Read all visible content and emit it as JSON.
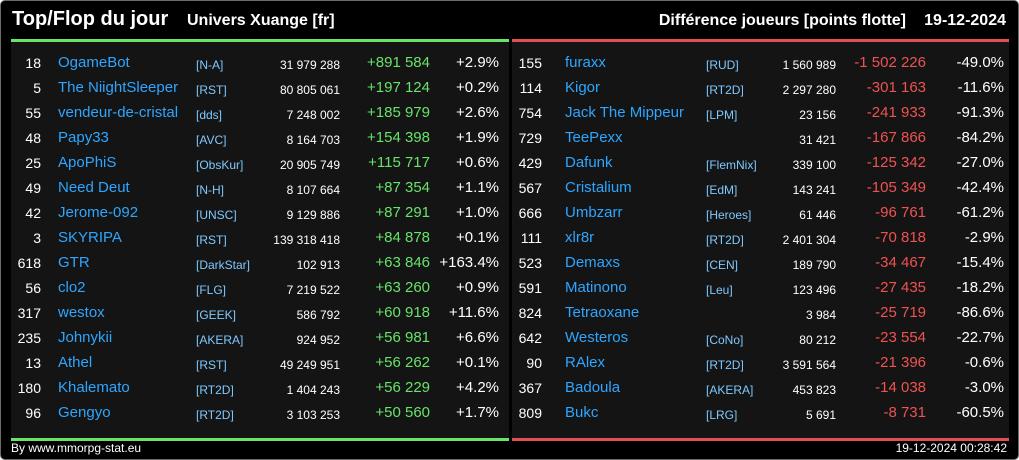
{
  "header": {
    "title": "Top/Flop du jour",
    "univers": "Univers Xuange [fr]",
    "metric": "Différence joueurs [points flotte]",
    "date": "19-12-2024"
  },
  "colors": {
    "top": "#6be36b",
    "flop": "#e0504f",
    "name": "#2ea6ff"
  },
  "top": [
    {
      "rank": "18",
      "name": "OgameBot",
      "alliance": "[N-A]",
      "points": "31 979 288",
      "diff": "+891 584",
      "pct": "+2.9%"
    },
    {
      "rank": "5",
      "name": "The NiightSleeper",
      "alliance": "[RST]",
      "points": "80 805 061",
      "diff": "+197 124",
      "pct": "+0.2%"
    },
    {
      "rank": "55",
      "name": "vendeur-de-cristal",
      "alliance": "[dds]",
      "points": "7 248 002",
      "diff": "+185 979",
      "pct": "+2.6%"
    },
    {
      "rank": "48",
      "name": "Papy33",
      "alliance": "[AVC]",
      "points": "8 164 703",
      "diff": "+154 398",
      "pct": "+1.9%"
    },
    {
      "rank": "25",
      "name": "ApoPhiS",
      "alliance": "[ObsKur]",
      "points": "20 905 749",
      "diff": "+115 717",
      "pct": "+0.6%"
    },
    {
      "rank": "49",
      "name": "Need Deut",
      "alliance": "[N-H]",
      "points": "8 107 664",
      "diff": "+87 354",
      "pct": "+1.1%"
    },
    {
      "rank": "42",
      "name": "Jerome-092",
      "alliance": "[UNSC]",
      "points": "9 129 886",
      "diff": "+87 291",
      "pct": "+1.0%"
    },
    {
      "rank": "3",
      "name": "SKYRIPA",
      "alliance": "[RST]",
      "points": "139 318 418",
      "diff": "+84 878",
      "pct": "+0.1%"
    },
    {
      "rank": "618",
      "name": "GTR",
      "alliance": "[DarkStar]",
      "points": "102 913",
      "diff": "+63 846",
      "pct": "+163.4%"
    },
    {
      "rank": "56",
      "name": "clo2",
      "alliance": "[FLG]",
      "points": "7 219 522",
      "diff": "+63 260",
      "pct": "+0.9%"
    },
    {
      "rank": "317",
      "name": "westox",
      "alliance": "[GEEK]",
      "points": "586 792",
      "diff": "+60 918",
      "pct": "+11.6%"
    },
    {
      "rank": "235",
      "name": "Johnykii",
      "alliance": "[AKERA]",
      "points": "924 952",
      "diff": "+56 981",
      "pct": "+6.6%"
    },
    {
      "rank": "13",
      "name": "Athel",
      "alliance": "[RST]",
      "points": "49 249 951",
      "diff": "+56 262",
      "pct": "+0.1%"
    },
    {
      "rank": "180",
      "name": "Khalemato",
      "alliance": "[RT2D]",
      "points": "1 404 243",
      "diff": "+56 229",
      "pct": "+4.2%"
    },
    {
      "rank": "96",
      "name": "Gengyo",
      "alliance": "[RT2D]",
      "points": "3 103 253",
      "diff": "+50 560",
      "pct": "+1.7%"
    }
  ],
  "flop": [
    {
      "rank": "155",
      "name": "furaxx",
      "alliance": "[RUD]",
      "points": "1 560 989",
      "diff": "-1 502 226",
      "pct": "-49.0%"
    },
    {
      "rank": "114",
      "name": "Kigor",
      "alliance": "[RT2D]",
      "points": "2 297 280",
      "diff": "-301 163",
      "pct": "-11.6%"
    },
    {
      "rank": "754",
      "name": "Jack The Mippeur",
      "alliance": "[LPM]",
      "points": "23 156",
      "diff": "-241 933",
      "pct": "-91.3%"
    },
    {
      "rank": "729",
      "name": "TeePexx",
      "alliance": "",
      "points": "31 421",
      "diff": "-167 866",
      "pct": "-84.2%"
    },
    {
      "rank": "429",
      "name": "Dafunk",
      "alliance": "[FlemNix]",
      "points": "339 100",
      "diff": "-125 342",
      "pct": "-27.0%"
    },
    {
      "rank": "567",
      "name": "Cristalium",
      "alliance": "[EdM]",
      "points": "143 241",
      "diff": "-105 349",
      "pct": "-42.4%"
    },
    {
      "rank": "666",
      "name": "Umbzarr",
      "alliance": "[Heroes]",
      "points": "61 446",
      "diff": "-96 761",
      "pct": "-61.2%"
    },
    {
      "rank": "111",
      "name": "xlr8r",
      "alliance": "[RT2D]",
      "points": "2 401 304",
      "diff": "-70 818",
      "pct": "-2.9%"
    },
    {
      "rank": "523",
      "name": "Demaxs",
      "alliance": "[CEN]",
      "points": "189 790",
      "diff": "-34 467",
      "pct": "-15.4%"
    },
    {
      "rank": "591",
      "name": "Matinono",
      "alliance": "[Leu]",
      "points": "123 496",
      "diff": "-27 435",
      "pct": "-18.2%"
    },
    {
      "rank": "824",
      "name": "Tetraoxane",
      "alliance": "",
      "points": "3 984",
      "diff": "-25 719",
      "pct": "-86.6%"
    },
    {
      "rank": "642",
      "name": "Westeros",
      "alliance": "[CoNo]",
      "points": "80 212",
      "diff": "-23 554",
      "pct": "-22.7%"
    },
    {
      "rank": "90",
      "name": "RAlex",
      "alliance": "[RT2D]",
      "points": "3 591 564",
      "diff": "-21 396",
      "pct": "-0.6%"
    },
    {
      "rank": "367",
      "name": "Badoula",
      "alliance": "[AKERA]",
      "points": "453 823",
      "diff": "-14 038",
      "pct": "-3.0%"
    },
    {
      "rank": "809",
      "name": "Bukc",
      "alliance": "[LRG]",
      "points": "5 691",
      "diff": "-8 731",
      "pct": "-60.5%"
    }
  ],
  "footer": {
    "by": "By www.mmorpg-stat.eu",
    "timestamp": "19-12-2024 00:28:42"
  }
}
